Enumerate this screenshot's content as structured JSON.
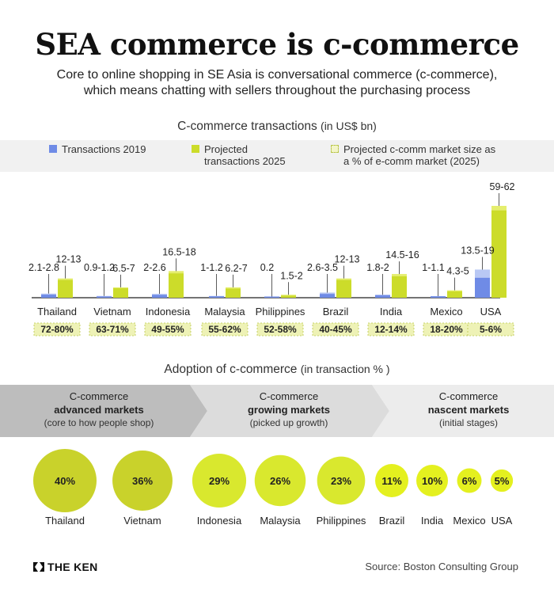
{
  "title": "SEA commerce is c-commerce",
  "subtitle_line1": "Core to online shopping in SE Asia is conversational commerce (c-commerce),",
  "subtitle_line2": "which means chatting with sellers throughout the purchasing process",
  "colors": {
    "blue": "#6f8be6",
    "blue_light": "#b9c8f4",
    "green": "#ccdc2a",
    "green_light": "#e5ee6e",
    "pct_fill": "#eef2b6",
    "band_dark": "#bdbdbd",
    "band_mid": "#dcdcdc",
    "band_light": "#ececec"
  },
  "chart_data": [
    {
      "type": "bar",
      "title": "C-commerce transactions",
      "title_unit": "(in US$ bn)",
      "legend": {
        "s2019": "Transactions 2019",
        "s2025_l1": "Projected",
        "s2025_l2": "transactions 2025",
        "pct_l1": "Projected c-comm market size as",
        "pct_l2": "a % of e-comm market (2025)"
      },
      "categories": [
        "Thailand",
        "Vietnam",
        "Indonesia",
        "Malaysia",
        "Philippines",
        "Brazil",
        "India",
        "Mexico",
        "USA"
      ],
      "series": [
        {
          "name": "Transactions 2019",
          "low": [
            2.1,
            0.9,
            2,
            1,
            0.2,
            2.6,
            1.8,
            1,
            13.5
          ],
          "high": [
            2.8,
            1.2,
            2.6,
            1.2,
            0.2,
            3.5,
            2,
            1.1,
            19
          ],
          "labels": [
            "2.1-2.8",
            "0.9-1.2",
            "2-2.6",
            "1-1.2",
            "0.2",
            "2.6-3.5",
            "1.8-2",
            "1-1.1",
            "13.5-19"
          ]
        },
        {
          "name": "Projected transactions 2025",
          "low": [
            12,
            6.5,
            16.5,
            6.2,
            1.5,
            12,
            14.5,
            4.3,
            59
          ],
          "high": [
            13,
            7,
            18,
            7,
            2,
            13,
            16,
            5,
            62
          ],
          "labels": [
            "12-13",
            "6.5-7",
            "16.5-18",
            "6.2-7",
            "1.5-2",
            "12-13",
            "14.5-16",
            "4.3-5",
            "59-62"
          ]
        }
      ],
      "pct_labels": [
        "72-80%",
        "63-71%",
        "49-55%",
        "55-62%",
        "52-58%",
        "40-45%",
        "12-14%",
        "18-20%",
        "5-6%"
      ],
      "ylim": [
        0,
        62
      ]
    },
    {
      "type": "bubble",
      "title": "Adoption of c-commerce",
      "title_unit": "(in transaction % )",
      "categories": [
        "Thailand",
        "Vietnam",
        "Indonesia",
        "Malaysia",
        "Philippines",
        "Brazil",
        "India",
        "Mexico",
        "USA"
      ],
      "values": [
        40,
        36,
        29,
        26,
        23,
        11,
        10,
        6,
        5
      ],
      "labels": [
        "40%",
        "36%",
        "29%",
        "26%",
        "23%",
        "11%",
        "10%",
        "6%",
        "5%"
      ],
      "groups": [
        {
          "l1": "C-commerce",
          "l2": "advanced markets",
          "l3": "(core to how people shop)"
        },
        {
          "l1": "C-commerce",
          "l2": "growing markets",
          "l3": "(picked up growth)"
        },
        {
          "l1": "C-commerce",
          "l2": "nascent markets",
          "l3": "(initial stages)"
        }
      ]
    }
  ],
  "logo": "THE KEN",
  "source": "Source: Boston Consulting Group"
}
